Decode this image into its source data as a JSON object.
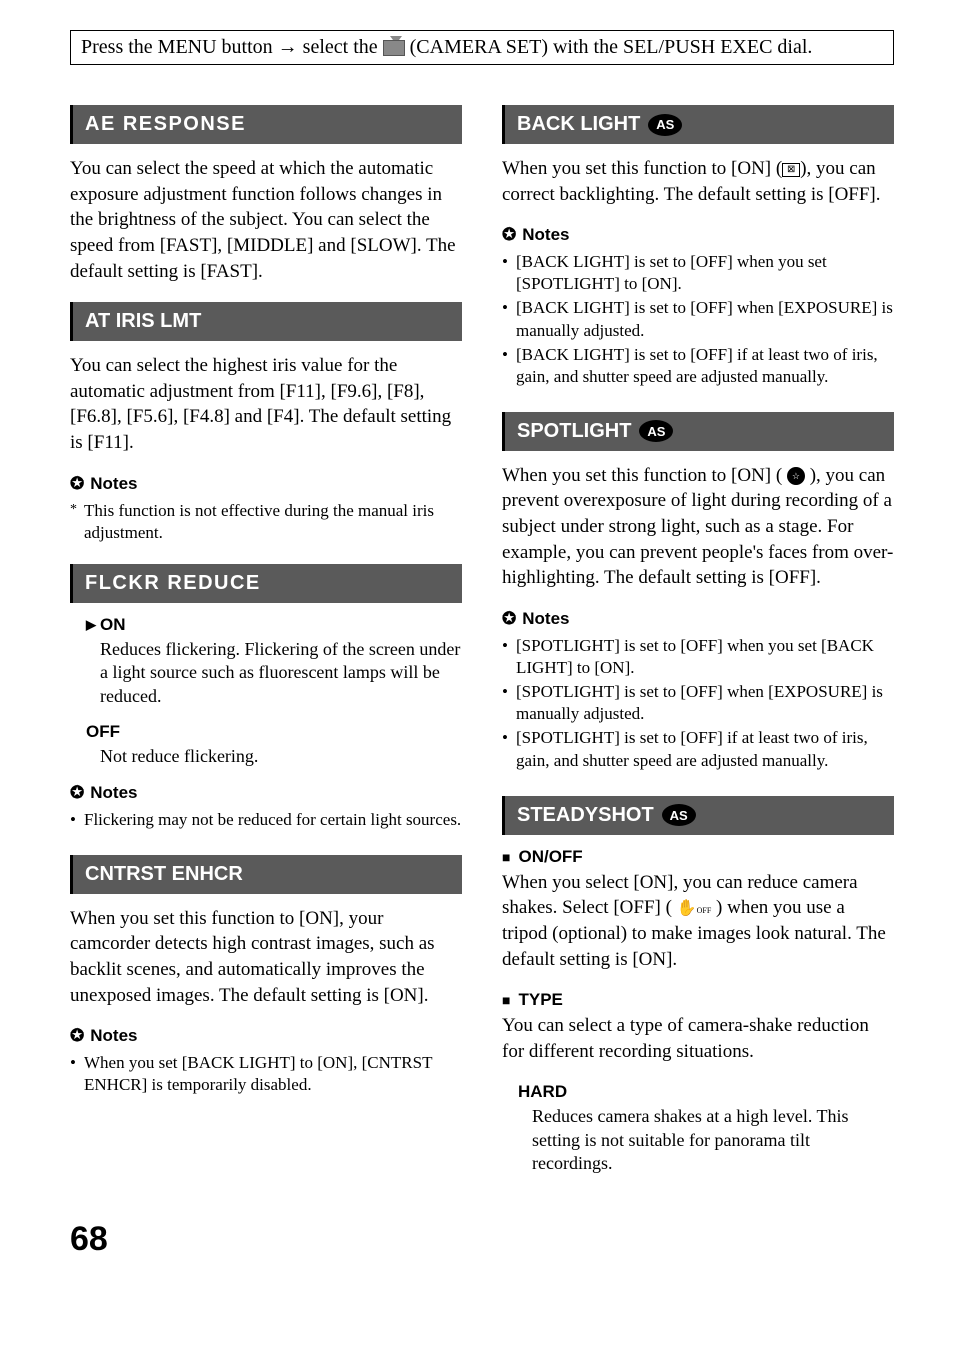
{
  "header_instruction": {
    "prefix": "Press the MENU button ",
    "arrow": "→",
    "mid": " select the ",
    "suffix": " (CAMERA SET) with the SEL/PUSH EXEC dial."
  },
  "left": {
    "ae_response": {
      "title": "AE  RESPONSE",
      "body": "You can select the speed at which the automatic exposure adjustment function follows changes in the brightness of the subject. You can select the speed from [FAST], [MIDDLE] and [SLOW]. The default setting is [FAST]."
    },
    "at_iris": {
      "title": "AT IRIS LMT",
      "body": "You can select the highest iris value for the automatic adjustment from [F11], [F9.6], [F8], [F6.8], [F5.6], [F4.8] and [F4]. The default setting is [F11].",
      "notes_label": "Notes",
      "note1": "This function is not effective during the manual iris adjustment."
    },
    "flckr": {
      "title": "FLCKR  REDUCE",
      "on_label": "ON",
      "on_desc": "Reduces flickering. Flickering of the screen under a light source such as fluorescent lamps will be reduced.",
      "off_label": "OFF",
      "off_desc": "Not reduce flickering.",
      "notes_label": "Notes",
      "note1": "Flickering may not be reduced for certain light sources."
    },
    "cntrst": {
      "title": "CNTRST ENHCR",
      "body": "When you set this function to [ON], your camcorder detects high contrast images, such as backlit scenes, and automatically improves the unexposed images. The default setting is [ON].",
      "notes_label": "Notes",
      "note1": "When you set [BACK LIGHT] to [ON], [CNTRST ENHCR] is temporarily disabled."
    }
  },
  "right": {
    "backlight": {
      "title": "BACK LIGHT",
      "body_pre": "When you set this function to [ON] (",
      "body_post": "), you can correct backlighting. The default setting is [OFF].",
      "notes_label": "Notes",
      "note1": "[BACK LIGHT] is set to [OFF] when you set [SPOTLIGHT] to [ON].",
      "note2": "[BACK LIGHT] is set to [OFF] when [EXPOSURE] is manually adjusted.",
      "note3": "[BACK LIGHT] is set to [OFF] if at least two of iris, gain, and shutter speed are adjusted manually."
    },
    "spotlight": {
      "title": "SPOTLIGHT",
      "body_pre": "When you set this function to [ON] ( ",
      "body_post": " ), you can prevent overexposure of light during recording of a subject under strong light, such as a stage. For example, you can prevent people's faces from over-highlighting. The default setting is [OFF].",
      "notes_label": "Notes",
      "note1": "[SPOTLIGHT] is set to [OFF] when you set [BACK LIGHT] to [ON].",
      "note2": "[SPOTLIGHT] is set to [OFF] when [EXPOSURE] is manually adjusted.",
      "note3": "[SPOTLIGHT] is set to [OFF] if at least two of iris, gain, and shutter speed are adjusted manually."
    },
    "steadyshot": {
      "title": "STEADYSHOT",
      "onoff_label": "ON/OFF",
      "onoff_pre": "When you select [ON], you can reduce camera shakes. Select [OFF] ( ",
      "onoff_post": " ) when you use a tripod (optional) to make images look natural. The default setting is [ON].",
      "type_label": "TYPE",
      "type_body": "You can select a type of camera-shake reduction for different recording situations.",
      "hard_label": "HARD",
      "hard_desc": "Reduces camera shakes at a high level. This setting is not suitable for panorama tilt recordings."
    }
  },
  "page_number": "68",
  "as_badge": "AS"
}
